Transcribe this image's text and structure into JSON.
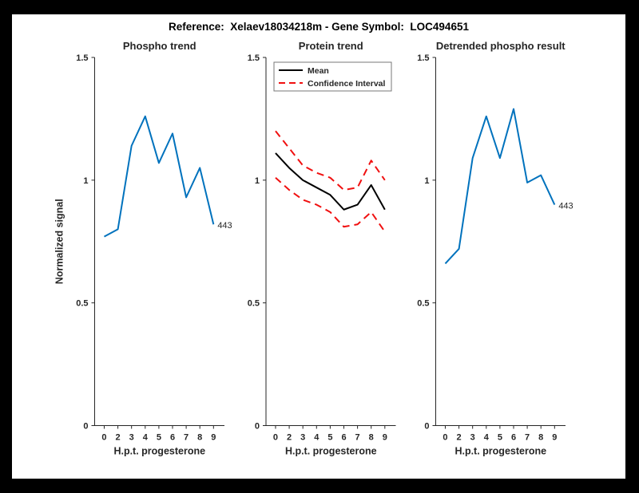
{
  "header": {
    "title": "Reference:  Xelaev18034218m - Gene Symbol:  LOC494651"
  },
  "colors": {
    "background": "#000000",
    "figure_bg": "#ffffff",
    "axis": "#262626",
    "blue": "#0072BD",
    "black": "#000000",
    "red": "#f01010"
  },
  "chart_data": [
    {
      "type": "line",
      "title": "Phospho trend",
      "xlabel": "H.p.t. progesterone",
      "ylabel": "Normalized signal",
      "categories": [
        "0",
        "2",
        "3",
        "4",
        "5",
        "6",
        "7",
        "8",
        "9"
      ],
      "ylim": [
        0,
        1.5
      ],
      "yticks": [
        0,
        0.5,
        1,
        1.5
      ],
      "yticklabels": [
        "0",
        "0.5",
        "1",
        "1.5"
      ],
      "grid": false,
      "series": [
        {
          "name": "phospho-signal",
          "color": "#0072BD",
          "style": "solid",
          "width": 2,
          "values": [
            0.77,
            0.8,
            1.14,
            1.26,
            1.07,
            1.19,
            0.93,
            1.05,
            0.82
          ]
        }
      ],
      "annotation": {
        "text": "443",
        "at": "end-of-line"
      }
    },
    {
      "type": "line",
      "title": "Protein trend",
      "xlabel": "H.p.t. progesterone",
      "ylabel": "",
      "categories": [
        "0",
        "2",
        "3",
        "4",
        "5",
        "6",
        "7",
        "8",
        "9"
      ],
      "ylim": [
        0,
        1.5
      ],
      "yticks": [
        0,
        0.5,
        1,
        1.5
      ],
      "yticklabels": [
        "0",
        "0.5",
        "1",
        "1.5"
      ],
      "grid": false,
      "legend": {
        "position": "top-left",
        "entries": [
          {
            "label": "Mean",
            "color": "#000000",
            "style": "solid"
          },
          {
            "label": "Confidence Interval",
            "color": "#f01010",
            "style": "dashed"
          }
        ]
      },
      "series": [
        {
          "name": "mean",
          "color": "#000000",
          "style": "solid",
          "width": 2,
          "values": [
            1.11,
            1.05,
            1.0,
            0.97,
            0.94,
            0.88,
            0.9,
            0.98,
            0.88
          ]
        },
        {
          "name": "ci-upper",
          "color": "#f01010",
          "style": "dashed",
          "width": 2,
          "values": [
            1.2,
            1.13,
            1.06,
            1.03,
            1.01,
            0.96,
            0.97,
            1.08,
            1.0
          ]
        },
        {
          "name": "ci-lower",
          "color": "#f01010",
          "style": "dashed",
          "width": 2,
          "values": [
            1.01,
            0.96,
            0.92,
            0.9,
            0.87,
            0.81,
            0.82,
            0.87,
            0.79
          ]
        }
      ]
    },
    {
      "type": "line",
      "title": "Detrended phospho result",
      "xlabel": "H.p.t. progesterone",
      "ylabel": "",
      "categories": [
        "0",
        "2",
        "3",
        "4",
        "5",
        "6",
        "7",
        "8",
        "9"
      ],
      "ylim": [
        0,
        1.5
      ],
      "yticks": [
        0,
        0.5,
        1,
        1.5
      ],
      "yticklabels": [
        "0",
        "0.5",
        "1",
        "1.5"
      ],
      "grid": false,
      "series": [
        {
          "name": "detrended-signal",
          "color": "#0072BD",
          "style": "solid",
          "width": 2,
          "values": [
            0.66,
            0.72,
            1.09,
            1.26,
            1.09,
            1.29,
            0.99,
            1.02,
            0.9
          ]
        }
      ],
      "annotation": {
        "text": "443",
        "at": "end-of-line"
      }
    }
  ]
}
